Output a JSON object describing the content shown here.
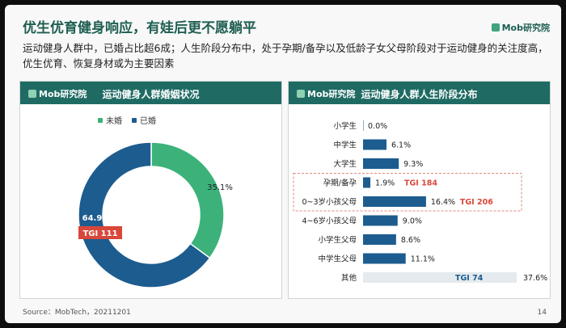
{
  "slide": {
    "title": "优生优育健身响应，有娃后更不愿躺平",
    "brand": "Mob研究院",
    "subtitle": "运动健身人群中，已婚占比超6成；人生阶段分布中，处于孕期/备孕以及低龄子女父母阶段对于运动健身的关注度高，优生优育、恢复身材或为主要因素",
    "source": "Source：MobTech，20211201",
    "page_number": "14"
  },
  "colors": {
    "unmarried": "#3cb27a",
    "married": "#1d5c8f",
    "bar": "#1d5c8f",
    "tgi": "#d9473a",
    "header": "#1f6b64",
    "tgi_plain": "#1d5c8f"
  },
  "left_panel": {
    "logo": "Mob研究院",
    "title": "运动健身人群婚姻状况",
    "legend": [
      {
        "label": "未婚",
        "color": "#3cb27a"
      },
      {
        "label": "已婚",
        "color": "#1d5c8f"
      }
    ]
  },
  "right_panel": {
    "logo": "Mob研究院",
    "title": "运动健身人群人生阶段分布"
  },
  "chart_data": [
    {
      "type": "pie",
      "title": "运动健身人群婚姻状况",
      "categories": [
        "未婚",
        "已婚"
      ],
      "values": [
        35.1,
        64.9
      ],
      "value_labels": [
        "35.1%",
        "64.9%"
      ],
      "annotations": [
        {
          "category": "已婚",
          "text": "TGI 111"
        }
      ]
    },
    {
      "type": "bar",
      "orientation": "horizontal",
      "title": "运动健身人群人生阶段分布",
      "categories": [
        "小学生",
        "中学生",
        "大学生",
        "孕期/备孕",
        "0~3岁小孩父母",
        "4~6岁小孩父母",
        "小学生父母",
        "中学生父母",
        "其他"
      ],
      "values": [
        0.0,
        6.1,
        9.3,
        1.9,
        16.4,
        9.0,
        8.6,
        11.1,
        37.6
      ],
      "value_labels": [
        "0.0%",
        "6.1%",
        "9.3%",
        "1.9%",
        "16.4%",
        "9.0%",
        "8.6%",
        "11.1%",
        "37.6%"
      ],
      "annotations": [
        {
          "category": "孕期/备孕",
          "text": "TGI 184"
        },
        {
          "category": "0~3岁小孩父母",
          "text": "TGI 206"
        },
        {
          "category": "其他",
          "text": "TGI 74"
        }
      ],
      "xlim": [
        0,
        40
      ],
      "highlight_categories": [
        "孕期/备孕",
        "0~3岁小孩父母"
      ]
    }
  ]
}
